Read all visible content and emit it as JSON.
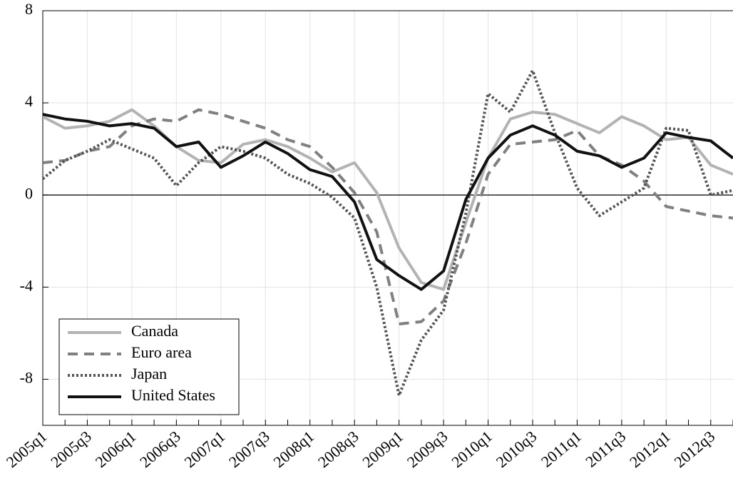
{
  "chart_data": {
    "type": "line",
    "categories": [
      "2005q1",
      null,
      "2005q3",
      null,
      "2006q1",
      null,
      "2006q3",
      null,
      "2007q1",
      null,
      "2007q3",
      null,
      "2008q1",
      null,
      "2008q3",
      null,
      "2009q1",
      null,
      "2009q3",
      null,
      "2010q1",
      null,
      "2010q3",
      null,
      "2011q1",
      null,
      "2011q3",
      null,
      "2012q1",
      null,
      "2012q3",
      null
    ],
    "series": [
      {
        "name": "Canada",
        "color": "#b3b3b3",
        "style": "solid",
        "values": [
          3.4,
          2.9,
          3.0,
          3.2,
          3.7,
          3.0,
          2.1,
          1.5,
          1.4,
          2.2,
          2.4,
          2.1,
          1.6,
          1.0,
          1.4,
          0.1,
          -2.3,
          -3.8,
          -4.1,
          -1.2,
          1.6,
          3.3,
          3.6,
          3.5,
          3.1,
          2.7,
          3.4,
          3.0,
          2.4,
          2.5,
          1.3,
          0.9
        ]
      },
      {
        "name": "Euro area",
        "color": "#808080",
        "style": "dashed",
        "values": [
          1.4,
          1.5,
          1.9,
          2.1,
          3.0,
          3.3,
          3.2,
          3.7,
          3.5,
          3.2,
          2.9,
          2.4,
          2.1,
          1.2,
          0.1,
          -1.6,
          -5.6,
          -5.5,
          -4.6,
          -2.1,
          0.9,
          2.2,
          2.3,
          2.4,
          2.8,
          1.7,
          1.3,
          0.6,
          -0.5,
          -0.7,
          -0.9,
          -1.0
        ]
      },
      {
        "name": "Japan",
        "color": "#555555",
        "style": "dotted",
        "values": [
          0.7,
          1.5,
          1.9,
          2.4,
          2.0,
          1.6,
          0.4,
          1.4,
          2.1,
          1.9,
          1.6,
          0.9,
          0.5,
          -0.1,
          -1.0,
          -4.0,
          -8.7,
          -6.3,
          -5.0,
          -0.8,
          4.4,
          3.6,
          5.4,
          2.7,
          0.3,
          -0.9,
          -0.3,
          0.3,
          2.9,
          2.8,
          0.0,
          0.2
        ]
      },
      {
        "name": "United States",
        "color": "#111111",
        "style": "solid",
        "values": [
          3.5,
          3.3,
          3.2,
          3.0,
          3.1,
          2.9,
          2.1,
          2.3,
          1.2,
          1.7,
          2.3,
          1.8,
          1.1,
          0.8,
          -0.3,
          -2.8,
          -3.5,
          -4.1,
          -3.3,
          -0.2,
          1.6,
          2.6,
          3.0,
          2.6,
          1.9,
          1.7,
          1.2,
          1.6,
          2.7,
          2.5,
          2.35,
          1.6
        ]
      }
    ],
    "ylim": [
      -10,
      8
    ],
    "yticks": [
      -8,
      -4,
      0,
      4,
      8
    ],
    "grid": true,
    "zero_line": true,
    "legend": "lower left"
  }
}
